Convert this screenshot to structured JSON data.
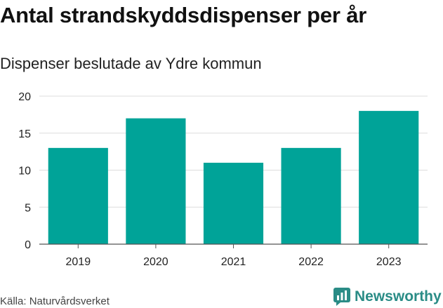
{
  "title": "Antal strandskyddsdispenser per år",
  "subtitle": "Dispenser beslutade av Ydre kommun",
  "source": "Källa: Naturvårdsverket",
  "brand": "Newsworthy",
  "colors": {
    "bar": "#00a398",
    "grid": "#dddddd",
    "brand": "#2a8c86"
  },
  "chart_data": {
    "type": "bar",
    "title": "Antal strandskyddsdispenser per år",
    "subtitle": "Dispenser beslutade av Ydre kommun",
    "categories": [
      "2019",
      "2020",
      "2021",
      "2022",
      "2023"
    ],
    "values": [
      13,
      17,
      11,
      13,
      18
    ],
    "xlabel": "",
    "ylabel": "",
    "ylim": [
      0,
      20
    ],
    "yticks": [
      0,
      5,
      10,
      15,
      20
    ],
    "grid": true,
    "legend": "none"
  }
}
